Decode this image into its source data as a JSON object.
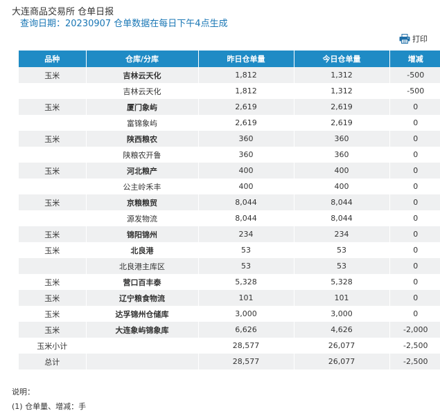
{
  "header": {
    "title": "大连商品交易所 仓单日报",
    "subtitle": "查询日期：20230907 仓单数据在每日下午4点生成"
  },
  "toolbar": {
    "print_label": "打印",
    "print_icon": "printer-icon"
  },
  "table": {
    "columns": [
      "品种",
      "仓库/分库",
      "昨日仓单量",
      "今日仓单量",
      "增减"
    ],
    "rows": [
      {
        "variety": "玉米",
        "warehouse": "吉林云天化",
        "yesterday": "1,812",
        "today": "1,312",
        "change": "-500",
        "bold": true
      },
      {
        "variety": "",
        "warehouse": "吉林云天化",
        "yesterday": "1,812",
        "today": "1,312",
        "change": "-500",
        "bold": false
      },
      {
        "variety": "玉米",
        "warehouse": "厦门象屿",
        "yesterday": "2,619",
        "today": "2,619",
        "change": "0",
        "bold": true
      },
      {
        "variety": "",
        "warehouse": "富锦象屿",
        "yesterday": "2,619",
        "today": "2,619",
        "change": "0",
        "bold": false
      },
      {
        "variety": "玉米",
        "warehouse": "陕西粮农",
        "yesterday": "360",
        "today": "360",
        "change": "0",
        "bold": true
      },
      {
        "variety": "",
        "warehouse": "陕粮农开鲁",
        "yesterday": "360",
        "today": "360",
        "change": "0",
        "bold": false
      },
      {
        "variety": "玉米",
        "warehouse": "河北粮产",
        "yesterday": "400",
        "today": "400",
        "change": "0",
        "bold": true
      },
      {
        "variety": "",
        "warehouse": "公主岭禾丰",
        "yesterday": "400",
        "today": "400",
        "change": "0",
        "bold": false
      },
      {
        "variety": "玉米",
        "warehouse": "京粮粮贸",
        "yesterday": "8,044",
        "today": "8,044",
        "change": "0",
        "bold": true
      },
      {
        "variety": "",
        "warehouse": "源发物流",
        "yesterday": "8,044",
        "today": "8,044",
        "change": "0",
        "bold": false
      },
      {
        "variety": "玉米",
        "warehouse": "锦阳锦州",
        "yesterday": "234",
        "today": "234",
        "change": "0",
        "bold": true
      },
      {
        "variety": "玉米",
        "warehouse": "北良港",
        "yesterday": "53",
        "today": "53",
        "change": "0",
        "bold": true
      },
      {
        "variety": "",
        "warehouse": "北良港主库区",
        "yesterday": "53",
        "today": "53",
        "change": "0",
        "bold": false
      },
      {
        "variety": "玉米",
        "warehouse": "营口百丰泰",
        "yesterday": "5,328",
        "today": "5,328",
        "change": "0",
        "bold": true
      },
      {
        "variety": "玉米",
        "warehouse": "辽宁粮食物流",
        "yesterday": "101",
        "today": "101",
        "change": "0",
        "bold": true
      },
      {
        "variety": "玉米",
        "warehouse": "达孚锦州仓储库",
        "yesterday": "3,000",
        "today": "3,000",
        "change": "0",
        "bold": true
      },
      {
        "variety": "玉米",
        "warehouse": "大连象屿锦象库",
        "yesterday": "6,626",
        "today": "4,626",
        "change": "-2,000",
        "bold": true
      },
      {
        "variety": "玉米小计",
        "warehouse": "",
        "yesterday": "28,577",
        "today": "26,077",
        "change": "-2,500",
        "bold": false
      },
      {
        "variety": "总计",
        "warehouse": "",
        "yesterday": "28,577",
        "today": "26,077",
        "change": "-2,500",
        "bold": false
      }
    ]
  },
  "notes": {
    "heading": "说明：",
    "items": [
      "(1) 仓单量、增减：手"
    ]
  }
}
